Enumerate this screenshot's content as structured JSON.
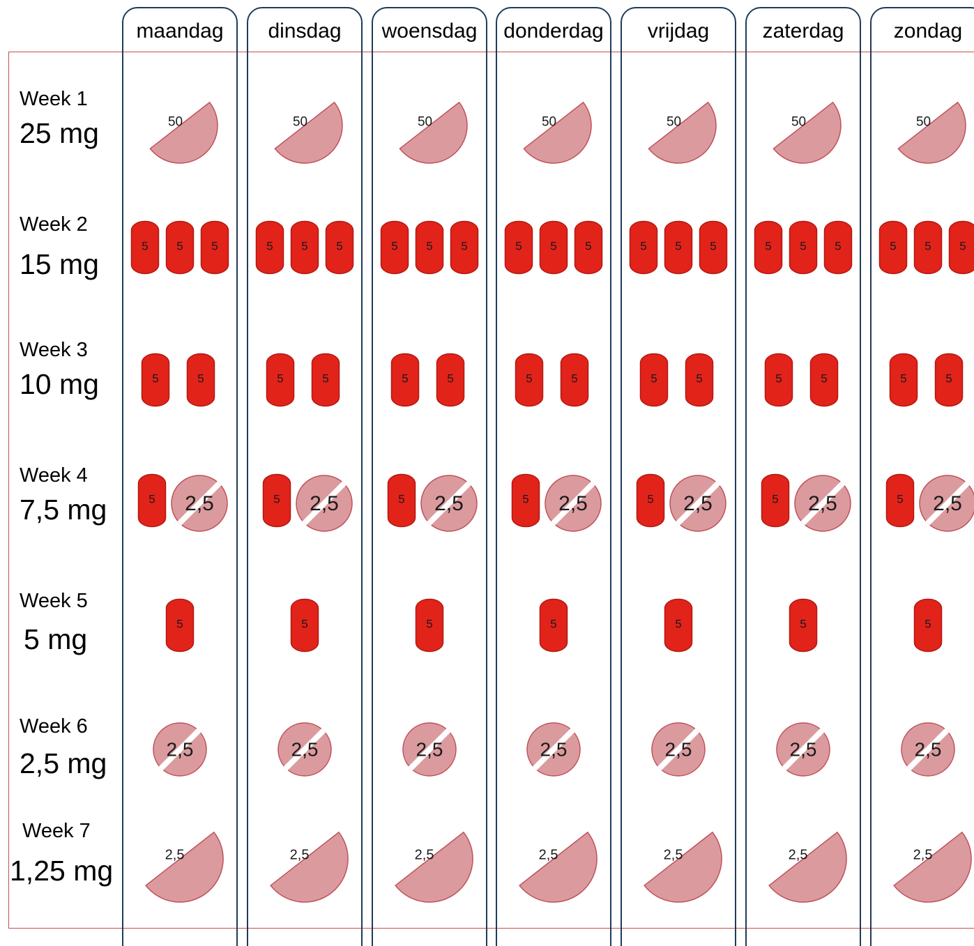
{
  "days": [
    "maandag",
    "dinsdag",
    "woensdag",
    "donderdag",
    "vrijdag",
    "zaterdag",
    "zondag"
  ],
  "weeks": [
    {
      "week": "Week 1",
      "dose": "25 mg",
      "tablets": [
        {
          "kind": "half",
          "label": "50"
        }
      ]
    },
    {
      "week": "Week 2",
      "dose": "15 mg",
      "tablets": [
        {
          "kind": "capsule",
          "label": "5"
        },
        {
          "kind": "capsule",
          "label": "5"
        },
        {
          "kind": "capsule",
          "label": "5"
        }
      ]
    },
    {
      "week": "Week 3",
      "dose": "10 mg",
      "tablets": [
        {
          "kind": "capsule",
          "label": "5"
        },
        {
          "kind": "capsule",
          "label": "5"
        }
      ]
    },
    {
      "week": "Week 4",
      "dose": "7,5 mg",
      "tablets": [
        {
          "kind": "capsule",
          "label": "5"
        },
        {
          "kind": "round",
          "label": "2,5"
        }
      ]
    },
    {
      "week": "Week 5",
      "dose": "5 mg",
      "tablets": [
        {
          "kind": "capsule",
          "label": "5"
        }
      ]
    },
    {
      "week": "Week 6",
      "dose": "2,5 mg",
      "tablets": [
        {
          "kind": "round",
          "label": "2,5"
        }
      ]
    },
    {
      "week": "Week 7",
      "dose": "1,25 mg",
      "tablets": [
        {
          "kind": "half",
          "label": "2,5"
        }
      ]
    }
  ],
  "colors": {
    "capsule": "#e2231a",
    "capsule_edge": "#b01812",
    "tablet": "#db9b9e",
    "tablet_edge": "#c0505a",
    "column_border": "#1f3b57",
    "frame_border": "#c0504d"
  },
  "icons": {
    "capsule": "capsule-tablet-icon",
    "round": "scored-round-tablet-icon",
    "half": "half-tablet-icon"
  }
}
